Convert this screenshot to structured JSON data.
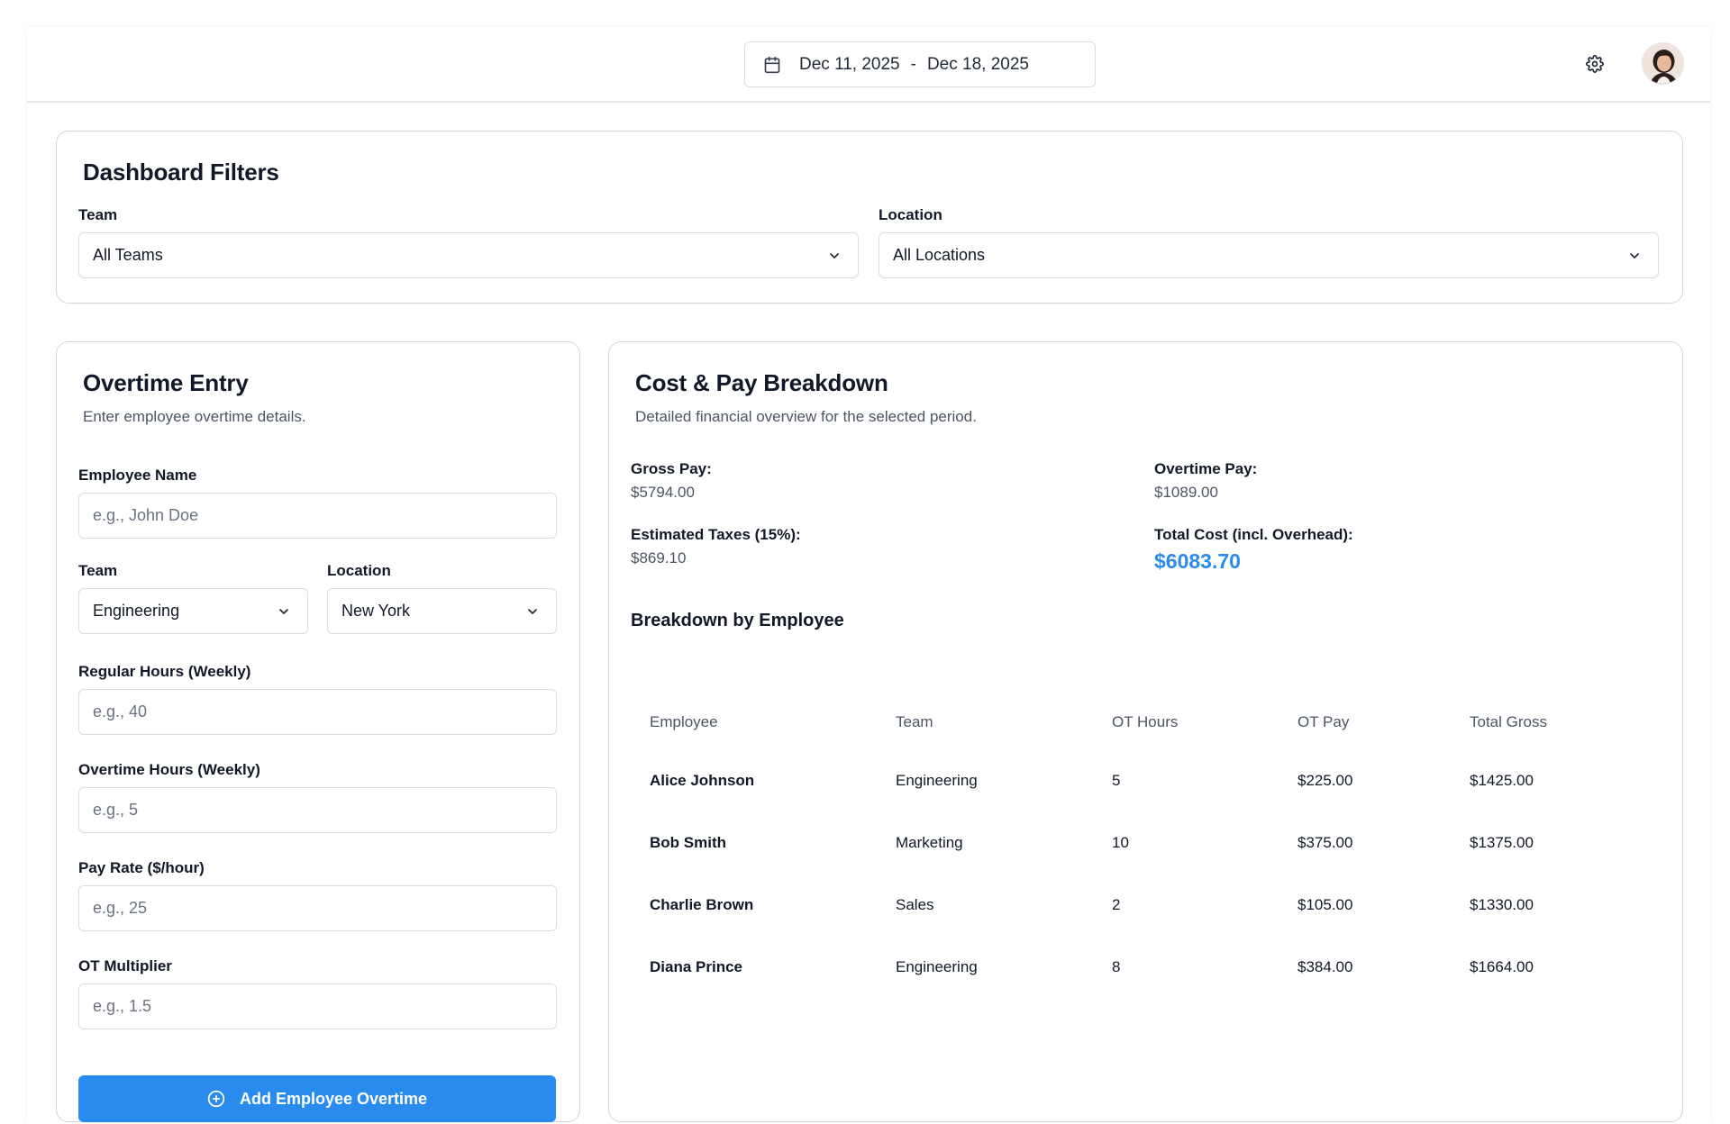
{
  "header": {
    "date_start": "Dec 11, 2025",
    "date_separator": "-",
    "date_end": "Dec 18, 2025",
    "settings_icon": "gear-icon",
    "calendar_icon": "calendar-icon"
  },
  "filters": {
    "title": "Dashboard Filters",
    "team_label": "Team",
    "team_value": "All Teams",
    "location_label": "Location",
    "location_value": "All Locations"
  },
  "entry": {
    "title": "Overtime Entry",
    "subtitle": "Enter employee overtime details.",
    "employee_name_label": "Employee Name",
    "employee_name_placeholder": "e.g., John Doe",
    "team_label": "Team",
    "team_value": "Engineering",
    "location_label": "Location",
    "location_value": "New York",
    "regular_hours_label": "Regular Hours (Weekly)",
    "regular_hours_placeholder": "e.g., 40",
    "overtime_hours_label": "Overtime Hours (Weekly)",
    "overtime_hours_placeholder": "e.g., 5",
    "pay_rate_label": "Pay Rate ($/hour)",
    "pay_rate_placeholder": "e.g., 25",
    "ot_multiplier_label": "OT Multiplier",
    "ot_multiplier_placeholder": "e.g., 1.5",
    "add_button_label": "Add Employee Overtime"
  },
  "breakdown": {
    "title": "Cost & Pay Breakdown",
    "subtitle": "Detailed financial overview for the selected period.",
    "gross_pay_label": "Gross Pay:",
    "gross_pay_value": "$5794.00",
    "overtime_pay_label": "Overtime Pay:",
    "overtime_pay_value": "$1089.00",
    "taxes_label": "Estimated Taxes (15%):",
    "taxes_value": "$869.10",
    "total_cost_label": "Total Cost (incl. Overhead):",
    "total_cost_value": "$6083.70",
    "table_title": "Breakdown by Employee",
    "columns": [
      "Employee",
      "Team",
      "OT Hours",
      "OT Pay",
      "Total Gross"
    ],
    "rows": [
      [
        "Alice Johnson",
        "Engineering",
        "5",
        "$225.00",
        "$1425.00"
      ],
      [
        "Bob Smith",
        "Marketing",
        "10",
        "$375.00",
        "$1375.00"
      ],
      [
        "Charlie Brown",
        "Sales",
        "2",
        "$105.00",
        "$1330.00"
      ],
      [
        "Diana Prince",
        "Engineering",
        "8",
        "$384.00",
        "$1664.00"
      ]
    ]
  },
  "colors": {
    "accent": "#2a8bef",
    "border": "#d1d5db",
    "muted_text": "#4b5563"
  }
}
